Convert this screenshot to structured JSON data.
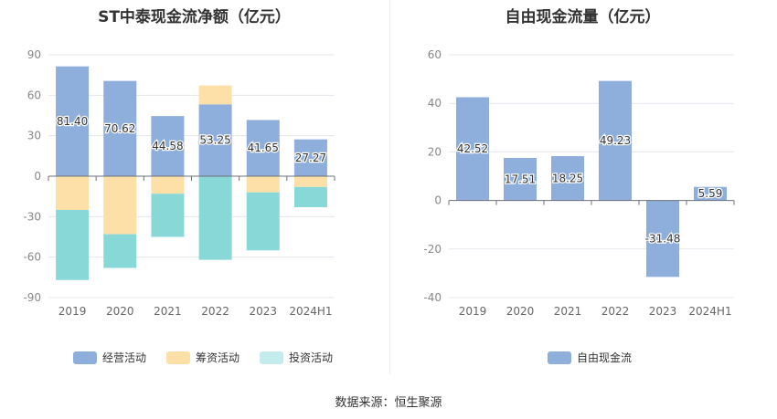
{
  "source": "数据来源：恒生聚源",
  "chart_data": [
    {
      "type": "bar",
      "stacked": true,
      "title": "ST中泰现金流净额（亿元）",
      "categories": [
        "2019",
        "2020",
        "2021",
        "2022",
        "2023",
        "2024H1"
      ],
      "ylim": [
        -90,
        90
      ],
      "yticks": [
        90,
        60,
        30,
        0,
        -30,
        -60,
        -90
      ],
      "grid": true,
      "legend_position": "bottom",
      "series": [
        {
          "name": "经营活动",
          "color": "#8eaedc",
          "values": [
            81.4,
            70.62,
            44.58,
            53.25,
            41.65,
            27.27
          ],
          "labels": [
            "81.40",
            "70.62",
            "44.58",
            "53.25",
            "41.65",
            "27.27"
          ]
        },
        {
          "name": "筹资活动",
          "color": "#fde0a8",
          "values": [
            -25,
            -43,
            -13,
            14,
            -12,
            -8
          ]
        },
        {
          "name": "投资活动",
          "color": "#88d8d8",
          "legend_color": "#c3ecec",
          "values": [
            -52,
            -25,
            -32,
            -62,
            -43,
            -15
          ]
        }
      ]
    },
    {
      "type": "bar",
      "title": "自由现金流量（亿元）",
      "categories": [
        "2019",
        "2020",
        "2021",
        "2022",
        "2023",
        "2024H1"
      ],
      "ylim": [
        -40,
        60
      ],
      "yticks": [
        60,
        40,
        20,
        0,
        -20,
        -40
      ],
      "grid": true,
      "legend_position": "bottom",
      "series": [
        {
          "name": "自由现金流",
          "color": "#8eaedc",
          "values": [
            42.52,
            17.51,
            18.25,
            49.23,
            -31.48,
            5.59
          ],
          "labels": [
            "42.52",
            "17.51",
            "18.25",
            "49.23",
            "-31.48",
            "5.59"
          ]
        }
      ]
    }
  ]
}
